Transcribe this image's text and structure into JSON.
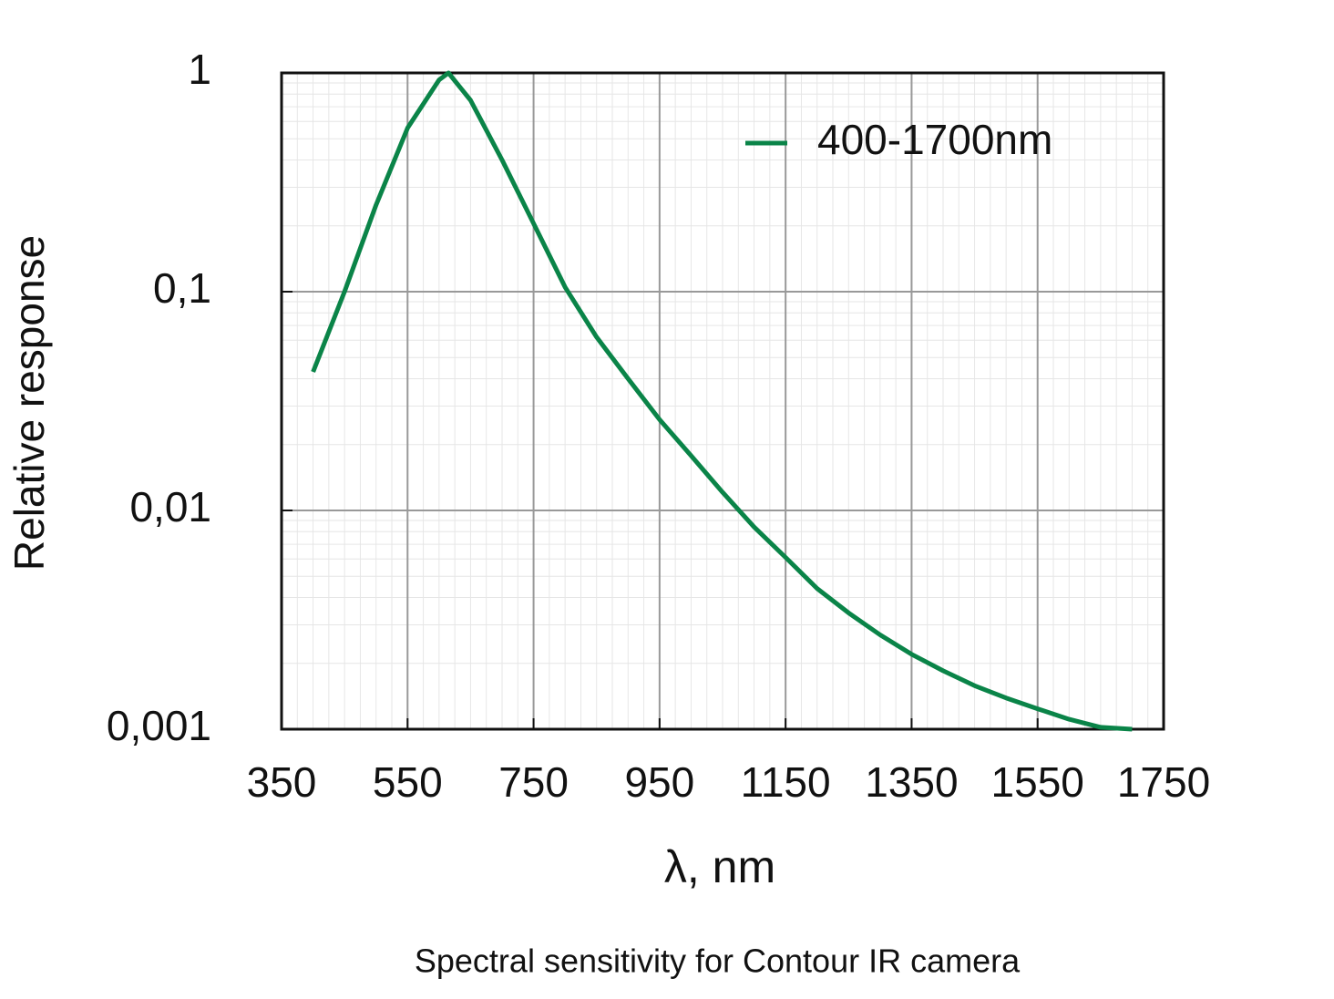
{
  "chart_data": {
    "type": "line",
    "caption": "Spectral sensitivity for Contour IR camera",
    "x_label": "λ, nm",
    "y_label": "Relative response",
    "y_scale": "log",
    "grid": true,
    "legend": "upper right",
    "xlim": [
      350,
      1750
    ],
    "xticks": [
      350,
      550,
      750,
      950,
      1150,
      1350,
      1550,
      1750
    ],
    "ylim": [
      0.001,
      1
    ],
    "yticks": [
      {
        "value": 0.001,
        "label": "0,001"
      },
      {
        "value": 0.01,
        "label": "0,01"
      },
      {
        "value": 0.1,
        "label": "0,1"
      },
      1
    ],
    "x": [
      400,
      450,
      500,
      550,
      600,
      615,
      650,
      700,
      750,
      800,
      850,
      900,
      950,
      1000,
      1050,
      1100,
      1150,
      1200,
      1250,
      1300,
      1350,
      1400,
      1450,
      1500,
      1550,
      1600,
      1650,
      1700
    ],
    "series": [
      {
        "name": "400-1700nm",
        "color": "#0a8448",
        "values": [
          0.043,
          0.1,
          0.249,
          0.56,
          0.93,
          1,
          0.75,
          0.4,
          0.205,
          0.105,
          0.062,
          0.04,
          0.026,
          0.0178,
          0.0121,
          0.0084,
          0.0061,
          0.0044,
          0.0034,
          0.0027,
          0.0022,
          0.00185,
          0.00158,
          0.00139,
          0.00124,
          0.00111,
          0.00102,
          0.001
        ]
      }
    ]
  }
}
